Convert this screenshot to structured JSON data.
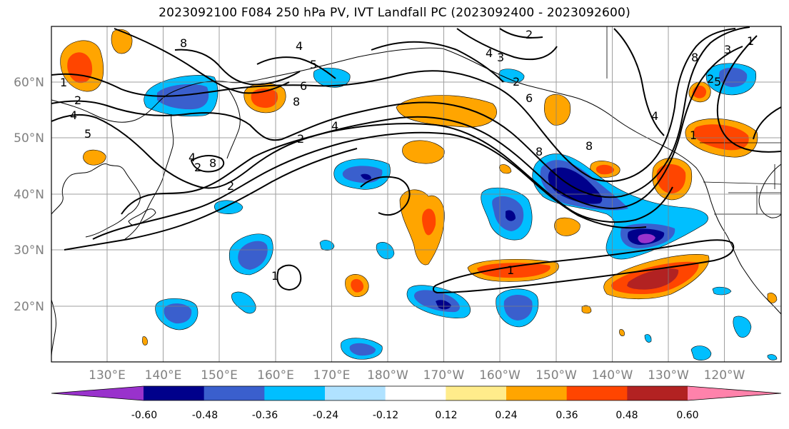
{
  "title": "2023092100 F084 250 hPa PV, IVT Landfall PC (2023092400 - 2023092600)",
  "map": {
    "lat_labels": [
      "60°N",
      "50°N",
      "40°N",
      "30°N",
      "20°N"
    ],
    "lon_labels": [
      "130°E",
      "140°E",
      "150°E",
      "160°E",
      "170°E",
      "180°W",
      "170°W",
      "160°W",
      "150°W",
      "140°W",
      "130°W",
      "120°W"
    ],
    "pv_contour_labels": [
      "1",
      "2",
      "4",
      "5",
      "8",
      "2",
      "4",
      "8",
      "2",
      "4",
      "6",
      "8",
      "2",
      "4",
      "5",
      "2",
      "4",
      "1",
      "1",
      "8",
      "6",
      "8",
      "2",
      "3",
      "1",
      "4",
      "5",
      "8",
      "2",
      "3",
      "1"
    ]
  },
  "colorbar": {
    "colors": [
      "#9932cc",
      "#00008b",
      "#3a5fcd",
      "#00bfff",
      "#b0e2ff",
      "#ffffff",
      "#ffec8b",
      "#ffa500",
      "#ff4500",
      "#b22222",
      "#ff82ab"
    ],
    "tick_labels": [
      "-0.60",
      "-0.48",
      "-0.36",
      "-0.24",
      "-0.12",
      "0.12",
      "0.24",
      "0.36",
      "0.48",
      "0.60"
    ]
  }
}
